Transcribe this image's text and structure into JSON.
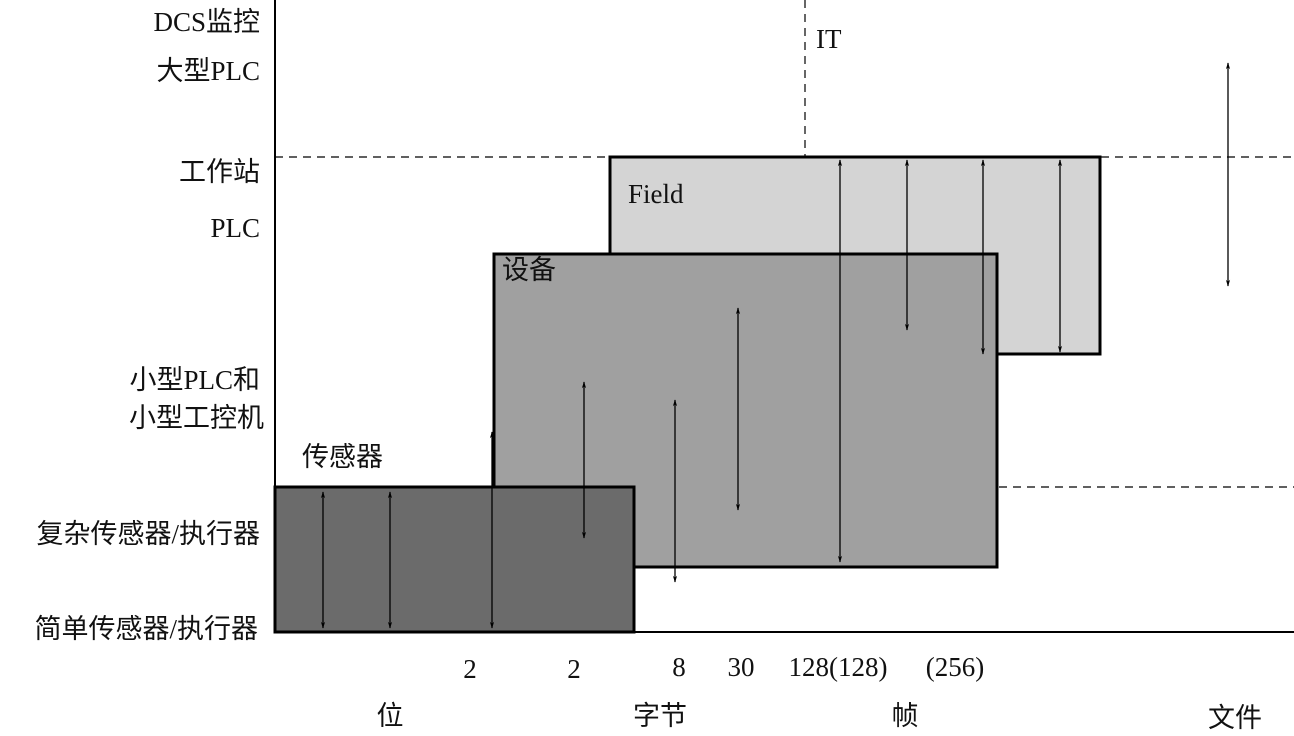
{
  "y_labels": [
    "DCS监控",
    "大型PLC",
    "工作站",
    "PLC",
    "小型PLC和",
    "小型工控机",
    "复杂传感器/执行器",
    "简单传感器/执行器"
  ],
  "regions": {
    "it": "IT",
    "field": "Field",
    "device": "设备",
    "sensor": "传感器"
  },
  "x_numbers": [
    "2",
    "2",
    "8",
    "30",
    "128(128)",
    "(256)"
  ],
  "x_labels": [
    "位",
    "字节",
    "帧",
    "文件"
  ]
}
